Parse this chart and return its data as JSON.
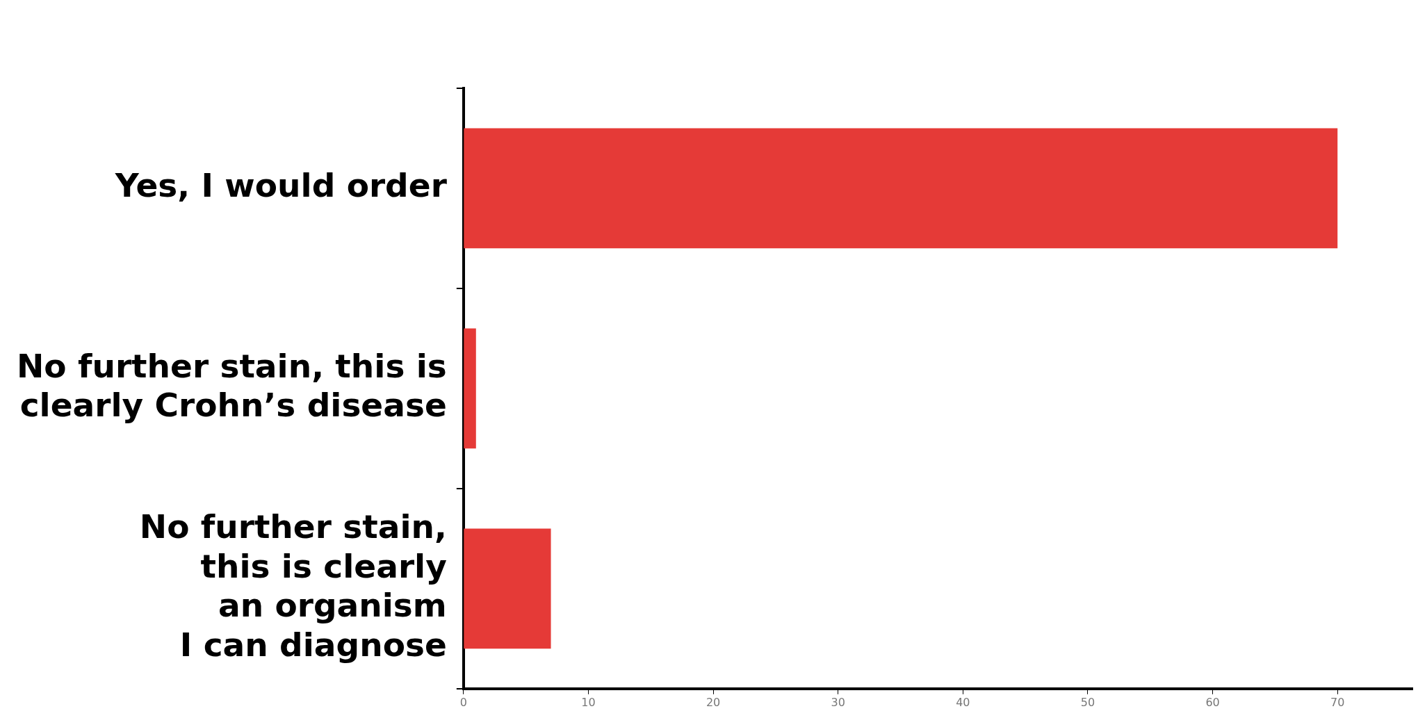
{
  "chart_data": {
    "type": "bar",
    "orientation": "horizontal",
    "categories": [
      "Yes, I would order",
      "No further stain, this is\nclearly Crohn’s disease",
      "No further stain,\nthis is clearly\nan organism\nI can diagnose"
    ],
    "values": [
      70,
      1,
      7
    ],
    "color": "#e53a37",
    "xlim": [
      0,
      76
    ],
    "xticks": [
      0,
      10,
      20,
      30,
      40,
      50,
      60,
      70
    ],
    "grid": false,
    "legend": false
  }
}
